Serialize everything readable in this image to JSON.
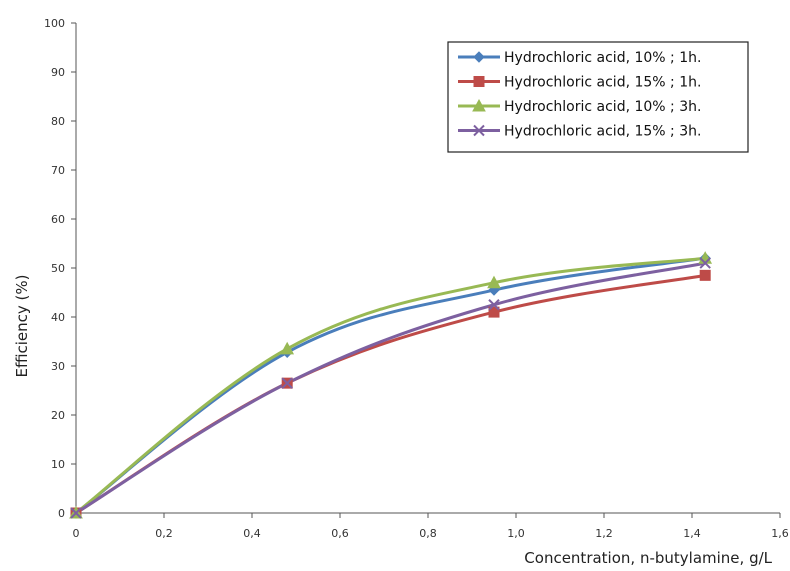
{
  "chart_data": {
    "type": "line",
    "title": "",
    "xlabel": "Concentration, n-butylamine, g/L",
    "ylabel": "Efficiency (%)",
    "xlim": [
      0,
      1.6
    ],
    "ylim": [
      0,
      100
    ],
    "x_ticks": [
      0,
      0.2,
      0.4,
      0.6,
      0.8,
      1.0,
      1.2,
      1.4,
      1.6
    ],
    "x_tick_labels": [
      "0",
      "0,2",
      "0,4",
      "0,6",
      "0,8",
      "1,0",
      "1,2",
      "1,4",
      "1,6"
    ],
    "y_ticks": [
      0,
      10,
      20,
      30,
      40,
      50,
      60,
      70,
      80,
      90,
      100
    ],
    "y_tick_labels": [
      "0",
      "10",
      "20",
      "30",
      "40",
      "50",
      "60",
      "70",
      "80",
      "90",
      "100"
    ],
    "grid": false,
    "smooth": true,
    "legend_position": "top-right",
    "series": [
      {
        "name": "Hydrochloric acid, 10% ; 1h.",
        "color": "#4A7EBB",
        "marker": "diamond",
        "x": [
          0,
          0.48,
          0.95,
          1.43
        ],
        "y": [
          0,
          32.8,
          45.5,
          52
        ]
      },
      {
        "name": "Hydrochloric acid, 15% ; 1h.",
        "color": "#BE4B48",
        "marker": "square",
        "x": [
          0,
          0.48,
          0.95,
          1.43
        ],
        "y": [
          0,
          26.5,
          41,
          48.5
        ]
      },
      {
        "name": "Hydrochloric acid, 10% ; 3h.",
        "color": "#98B954",
        "marker": "triangle",
        "x": [
          0,
          0.48,
          0.95,
          1.43
        ],
        "y": [
          0,
          33.5,
          47,
          52
        ]
      },
      {
        "name": "Hydrochloric acid, 15% ; 3h.",
        "color": "#7D60A0",
        "marker": "x",
        "x": [
          0,
          0.48,
          0.95,
          1.43
        ],
        "y": [
          0,
          26.5,
          42.5,
          51
        ]
      }
    ]
  }
}
